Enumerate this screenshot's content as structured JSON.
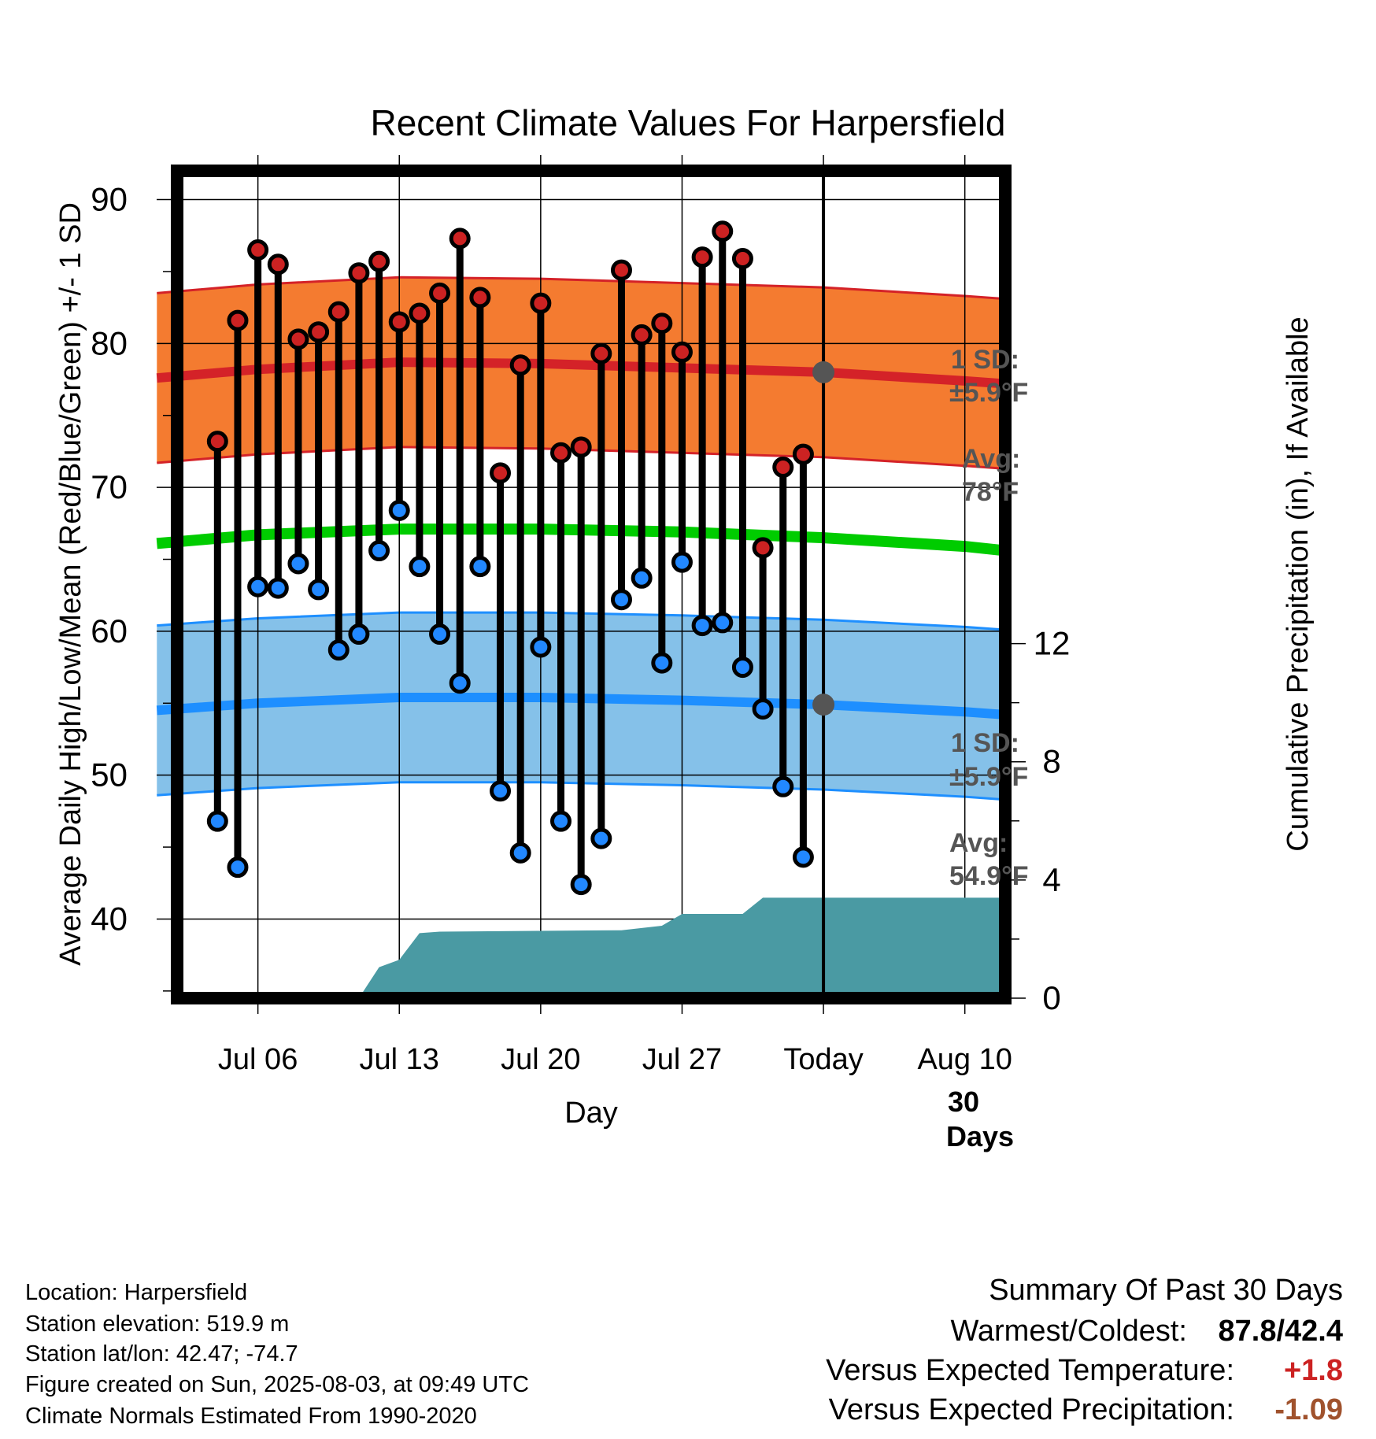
{
  "title": "Recent Climate Values For Harpersfield",
  "chart_data": {
    "type": "line",
    "title": "Recent Climate Values For Harpersfield",
    "xlabel": "Day",
    "ylabel": "Average Daily High/Low/Mean (Red/Blue/Green) +/- 1 SD",
    "y2label": "Cumulative Precipitation (in), If Available",
    "ylim": [
      34.5,
      92
    ],
    "y2lim": [
      0,
      28
    ],
    "xlim": [
      "2025-07-02",
      "2025-08-12"
    ],
    "x_ticks": [
      {
        "date": "2025-07-06",
        "label": "Jul 06"
      },
      {
        "date": "2025-07-13",
        "label": "Jul 13"
      },
      {
        "date": "2025-07-20",
        "label": "Jul 20"
      },
      {
        "date": "2025-07-27",
        "label": "Jul 27"
      },
      {
        "date": "2025-08-03",
        "label": "Today"
      },
      {
        "date": "2025-08-10",
        "label": "Aug 10"
      }
    ],
    "y_ticks": [
      40,
      50,
      60,
      70,
      80,
      90
    ],
    "y2_ticks": [
      0,
      4,
      8,
      12
    ],
    "grid": true,
    "days": [
      "2025-07-04",
      "2025-07-05",
      "2025-07-06",
      "2025-07-07",
      "2025-07-08",
      "2025-07-09",
      "2025-07-10",
      "2025-07-11",
      "2025-07-12",
      "2025-07-13",
      "2025-07-14",
      "2025-07-15",
      "2025-07-16",
      "2025-07-17",
      "2025-07-18",
      "2025-07-19",
      "2025-07-20",
      "2025-07-21",
      "2025-07-22",
      "2025-07-23",
      "2025-07-24",
      "2025-07-25",
      "2025-07-26",
      "2025-07-27",
      "2025-07-28",
      "2025-07-29",
      "2025-07-30",
      "2025-07-31",
      "2025-08-01",
      "2025-08-02"
    ],
    "highs": [
      73.2,
      81.6,
      86.5,
      85.5,
      80.3,
      80.8,
      82.2,
      84.9,
      85.7,
      81.5,
      82.1,
      83.5,
      87.3,
      83.2,
      71.0,
      78.5,
      82.8,
      72.4,
      72.8,
      79.3,
      85.1,
      80.6,
      81.4,
      79.4,
      86.0,
      87.8,
      85.9,
      65.8,
      71.4,
      72.3
    ],
    "lows": [
      46.8,
      43.6,
      63.1,
      63.0,
      64.7,
      62.9,
      58.7,
      59.8,
      65.6,
      68.4,
      64.5,
      59.8,
      56.4,
      64.5,
      48.9,
      44.6,
      58.9,
      46.8,
      42.4,
      45.6,
      62.2,
      63.7,
      57.8,
      64.8,
      60.4,
      60.6,
      57.5,
      54.6,
      49.2,
      44.3
    ],
    "normals": {
      "dates": [
        "2025-07-01",
        "2025-07-06",
        "2025-07-13",
        "2025-07-20",
        "2025-07-27",
        "2025-08-03",
        "2025-08-10",
        "2025-08-12"
      ],
      "avg_high": [
        77.6,
        78.2,
        78.7,
        78.6,
        78.3,
        78.0,
        77.4,
        77.2
      ],
      "avg_low": [
        54.5,
        55.0,
        55.4,
        55.4,
        55.2,
        54.9,
        54.4,
        54.2
      ],
      "avg_mean": [
        66.1,
        66.7,
        67.1,
        67.1,
        66.9,
        66.5,
        65.9,
        65.6
      ],
      "sd": 5.9
    },
    "precip": {
      "dates": [
        "2025-07-02",
        "2025-07-10",
        "2025-07-11",
        "2025-07-12",
        "2025-07-13",
        "2025-07-14",
        "2025-07-15",
        "2025-07-24",
        "2025-07-26",
        "2025-07-27",
        "2025-07-30",
        "2025-07-31",
        "2025-08-01",
        "2025-08-02",
        "2025-08-03",
        "2025-08-12"
      ],
      "values": [
        0,
        0,
        0,
        1.05,
        1.3,
        2.2,
        2.25,
        2.3,
        2.45,
        2.85,
        2.85,
        3.4,
        3.4,
        3.4,
        3.4,
        3.4
      ]
    },
    "series": [
      {
        "name": "High",
        "color": "#cc2222"
      },
      {
        "name": "Low",
        "color": "#2288ff"
      },
      {
        "name": "Mean",
        "color": "#00cc00"
      }
    ],
    "annotations": {
      "high_sd_label": "1 SD:",
      "high_sd_value": "±5.9°F",
      "high_avg_label": "Avg:",
      "high_avg_value": "78°F",
      "low_sd_label": "1 SD:",
      "low_sd_value": "±5.9°F",
      "low_avg_label": "Avg:",
      "low_avg_value": "54.9°F",
      "days_label_1": "30",
      "days_label_2": "Days"
    }
  },
  "station": {
    "location": "Location: Harpersfield",
    "elevation": "Station elevation: 519.9 m",
    "latlon": "Station lat/lon: 42.47; -74.7",
    "created": "Figure created on Sun, 2025-08-03, at 09:49 UTC",
    "normals": "Climate Normals Estimated From 1990-2020"
  },
  "summary": {
    "heading": "Summary Of Past 30 Days",
    "warm_cold_label": "Warmest/Coldest:",
    "warm_cold_value": "87.8/42.4",
    "temp_label": "Versus Expected Temperature:",
    "temp_value": "+1.8",
    "temp_color": "#cc2222",
    "precip_label": "Versus Expected Precipitation:",
    "precip_value": "-1.09",
    "precip_color": "#a0522d"
  },
  "colors": {
    "high_band": "#f47b30",
    "high_line": "#d42228",
    "low_band": "#85c1e9",
    "low_line": "#1e8fff",
    "mean_line": "#00cc00",
    "precip_fill": "#4a9aa3",
    "annotation_text": "#555555",
    "avg_marker": "#555555"
  }
}
